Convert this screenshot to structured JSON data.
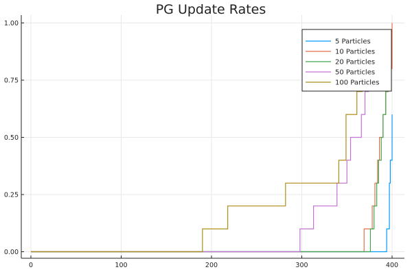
{
  "chart_data": {
    "type": "line",
    "title": "PG Update Rates",
    "xlim": [
      0,
      401
    ],
    "ylim": [
      0,
      1.0
    ],
    "xticks": [
      0,
      100,
      200,
      300,
      400
    ],
    "yticks": [
      0.0,
      0.25,
      0.5,
      0.75,
      1.0
    ],
    "xtick_labels": [
      "0",
      "100",
      "200",
      "300",
      "400"
    ],
    "ytick_labels": [
      "0.00",
      "0.25",
      "0.50",
      "0.75",
      "1.00"
    ],
    "grid": true,
    "legend_position": "top-right",
    "series": [
      {
        "name": "5 Particles",
        "color": "#009AFA",
        "steps": [
          [
            0,
            0
          ],
          [
            394,
            0.1
          ],
          [
            397,
            0.3
          ],
          [
            398,
            0.4
          ],
          [
            400,
            0.6
          ]
        ]
      },
      {
        "name": "10 Particles",
        "color": "#E26F46",
        "steps": [
          [
            0,
            0
          ],
          [
            369,
            0.1
          ],
          [
            378,
            0.2
          ],
          [
            381,
            0.3
          ],
          [
            384,
            0.4
          ],
          [
            386,
            0.5
          ],
          [
            390,
            0.6
          ],
          [
            393,
            0.7
          ],
          [
            396,
            0.8
          ],
          [
            400,
            1.0
          ]
        ]
      },
      {
        "name": "20 Particles",
        "color": "#3EA44E",
        "steps": [
          [
            0,
            0
          ],
          [
            376,
            0.1
          ],
          [
            380,
            0.2
          ],
          [
            383,
            0.3
          ],
          [
            385,
            0.4
          ],
          [
            388,
            0.5
          ],
          [
            390,
            0.6
          ],
          [
            393,
            0.7
          ],
          [
            395,
            0.8
          ],
          [
            399,
            0.9
          ]
        ]
      },
      {
        "name": "50 Particles",
        "color": "#C371D2",
        "steps": [
          [
            0,
            0
          ],
          [
            298,
            0.1
          ],
          [
            313,
            0.2
          ],
          [
            339,
            0.3
          ],
          [
            350,
            0.4
          ],
          [
            354,
            0.5
          ],
          [
            366,
            0.6
          ],
          [
            370,
            0.7
          ],
          [
            374,
            0.8
          ],
          [
            378,
            0.9
          ]
        ]
      },
      {
        "name": "100 Particles",
        "color": "#AC8D18",
        "steps": [
          [
            0,
            0
          ],
          [
            190,
            0.1
          ],
          [
            218,
            0.2
          ],
          [
            282,
            0.3
          ],
          [
            341,
            0.4
          ],
          [
            349,
            0.6
          ],
          [
            361,
            0.7
          ],
          [
            367,
            0.8
          ],
          [
            372,
            0.9
          ]
        ]
      }
    ]
  }
}
